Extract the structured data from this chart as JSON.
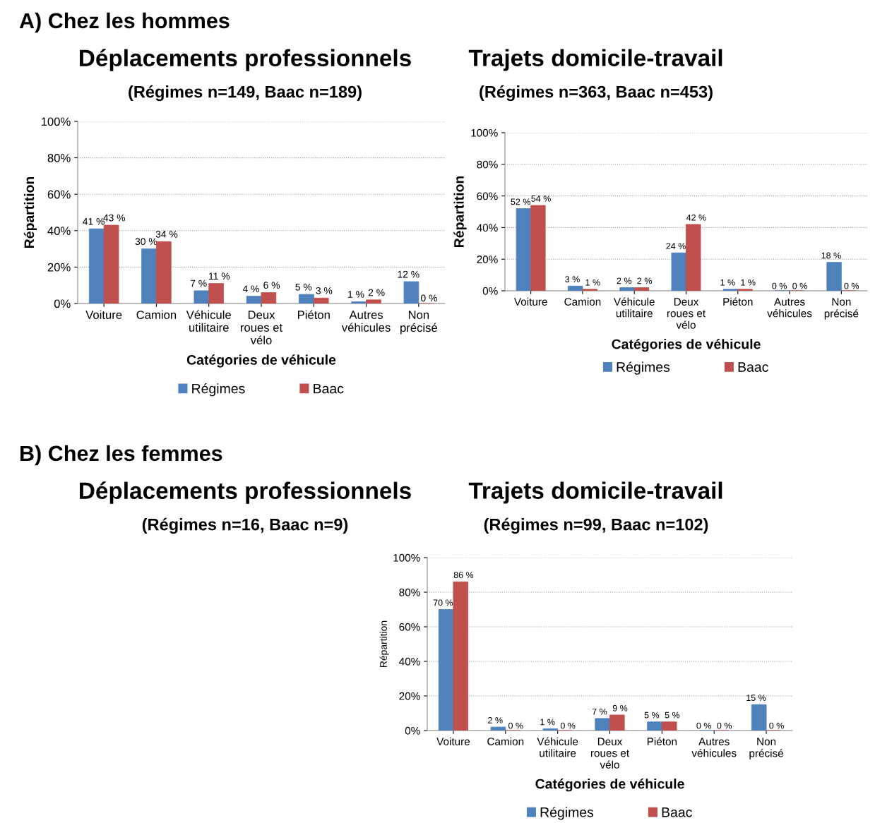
{
  "chart_data": [
    {
      "type": "bar",
      "title": "Déplacements professionnels",
      "subtitle": "(Régimes n=149, Baac n=189)",
      "annotations": [
        "A) Chez les hommes"
      ],
      "xlabel": "Catégories de véhicule",
      "ylabel": "Répartition",
      "categories": [
        "Voiture",
        "Camion",
        "Véhicule\nutilitaire",
        "Deux\nroues et\nvélo",
        "Piéton",
        "Autres\nvéhicules",
        "Non\nprécisé"
      ],
      "series": [
        {
          "name": "Régimes",
          "color": "#4f81bd",
          "values": [
            41,
            30,
            7,
            4,
            5,
            1,
            12
          ],
          "value_labels": [
            "41 %",
            "30 %",
            "7 %",
            "4 %",
            "5 %",
            "1 %",
            "12 %"
          ]
        },
        {
          "name": "Baac",
          "color": "#c0504d",
          "values": [
            43,
            34,
            11,
            6,
            3,
            2,
            0
          ],
          "value_labels": [
            "43 %",
            "34 %",
            "11 %",
            "6 %",
            "3 %",
            "2 %",
            "0 %"
          ]
        }
      ],
      "ylim": [
        0,
        100
      ],
      "yticks": [
        {
          "value": 0,
          "label": "0%"
        },
        {
          "value": 20,
          "label": "20%"
        },
        {
          "value": 40,
          "label": "40%"
        },
        {
          "value": 60,
          "label": "60%"
        },
        {
          "value": 80,
          "label": "80%"
        },
        {
          "value": 100,
          "label": "100%"
        }
      ],
      "grid": "y",
      "legend": "bottom"
    },
    {
      "type": "bar",
      "title": "Trajets domicile-travail",
      "subtitle": "(Régimes n=363, Baac n=453)",
      "xlabel": "Catégories de véhicule",
      "ylabel": "Répartition",
      "categories": [
        "Voiture",
        "Camion",
        "Véhicule\nutilitaire",
        "Deux\nroues et\nvélo",
        "Piéton",
        "Autres\nvéhicules",
        "Non\nprécisé"
      ],
      "series": [
        {
          "name": "Régimes",
          "color": "#4f81bd",
          "values": [
            52,
            3,
            2,
            24,
            1,
            0,
            18
          ],
          "value_labels": [
            "52 %",
            "3 %",
            "2 %",
            "24 %",
            "1 %",
            "0 %",
            "18 %"
          ]
        },
        {
          "name": "Baac",
          "color": "#c0504d",
          "values": [
            54,
            1,
            2,
            42,
            1,
            0,
            0
          ],
          "value_labels": [
            "54 %",
            "1 %",
            "2 %",
            "42 %",
            "1 %",
            "0 %",
            "0 %"
          ]
        }
      ],
      "ylim": [
        0,
        100
      ],
      "yticks": [
        {
          "value": 0,
          "label": "0%"
        },
        {
          "value": 20,
          "label": "20%"
        },
        {
          "value": 40,
          "label": "40%"
        },
        {
          "value": 60,
          "label": "60%"
        },
        {
          "value": 80,
          "label": "80%"
        },
        {
          "value": 100,
          "label": "100%"
        }
      ],
      "grid": "y",
      "legend": "bottom"
    },
    {
      "type": "other",
      "title": "Déplacements professionnels",
      "subtitle": "(Régimes n=16, Baac n=9)",
      "annotations": [
        "B) Chez les femmes"
      ]
    },
    {
      "type": "bar",
      "title": "Trajets domicile-travail",
      "subtitle": "(Régimes n=99, Baac n=102)",
      "xlabel": "Catégories de véhicule",
      "ylabel": "Répartition",
      "categories": [
        "Voiture",
        "Camion",
        "Véhicule\nutilitaire",
        "Deux\nroues et\nvélo",
        "Piéton",
        "Autres\nvéhicules",
        "Non\nprécisé"
      ],
      "series": [
        {
          "name": "Régimes",
          "color": "#4f81bd",
          "values": [
            70,
            2,
            1,
            7,
            5,
            0,
            15
          ],
          "value_labels": [
            "70 %",
            "2 %",
            "1 %",
            "7 %",
            "5 %",
            "0 %",
            "15 %"
          ]
        },
        {
          "name": "Baac",
          "color": "#c0504d",
          "values": [
            86,
            0,
            0,
            9,
            5,
            0,
            0
          ],
          "value_labels": [
            "86 %",
            "0 %",
            "0 %",
            "9 %",
            "5 %",
            "0 %",
            "0 %"
          ]
        }
      ],
      "ylim": [
        0,
        100
      ],
      "yticks": [
        {
          "value": 0,
          "label": "0%"
        },
        {
          "value": 20,
          "label": "20%"
        },
        {
          "value": 40,
          "label": "40%"
        },
        {
          "value": 60,
          "label": "60%"
        },
        {
          "value": 80,
          "label": "80%"
        },
        {
          "value": 100,
          "label": "100%"
        }
      ],
      "grid": "y",
      "legend": "bottom"
    }
  ]
}
